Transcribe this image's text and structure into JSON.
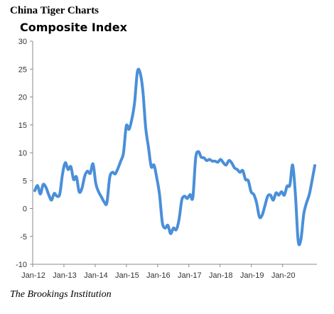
{
  "header": {
    "title": "China Tiger Charts"
  },
  "footer": {
    "source": "The Brookings Institution"
  },
  "chart_data": {
    "type": "line",
    "title": "Composite Index",
    "xlabel": "",
    "ylabel": "",
    "ylim": [
      -10,
      30
    ],
    "y_ticks": [
      30,
      25,
      20,
      15,
      10,
      5,
      0,
      -5,
      -10
    ],
    "x_ticks": [
      "Jan-12",
      "Jan-13",
      "Jan-14",
      "Jan-15",
      "Jan-16",
      "Jan-17",
      "Jan-18",
      "Jan-19",
      "Jan-20"
    ],
    "grid": false,
    "series_color": "#4a8fd9",
    "series": [
      {
        "values": [
          3.2,
          4.1,
          2.6,
          4.3,
          3.8,
          2.5,
          1.5,
          2.7,
          2.2,
          2.6,
          6.2,
          8.2,
          7.0,
          7.5,
          5.2,
          5.7,
          3.0,
          3.6,
          5.8,
          6.7,
          6.3,
          8.0,
          4.5,
          3.0,
          2.1,
          1.2,
          1.0,
          5.5,
          6.5,
          6.2,
          7.2,
          8.5,
          10.0,
          14.8,
          14.2,
          16.0,
          19.0,
          24.5,
          24.3,
          21.0,
          14.5,
          11.0,
          7.5,
          7.8,
          5.5,
          2.5,
          -2.5,
          -3.5,
          -3.0,
          -4.5,
          -3.5,
          -3.8,
          -2.0,
          1.5,
          2.2,
          1.8,
          2.5,
          2.0,
          9.0,
          10.2,
          9.2,
          9.1,
          8.6,
          8.8,
          8.5,
          8.5,
          8.3,
          8.8,
          8.2,
          7.8,
          8.6,
          8.2,
          7.3,
          7.0,
          6.5,
          6.8,
          5.2,
          5.0,
          3.0,
          2.5,
          1.0,
          -1.5,
          -1.2,
          0.5,
          2.2,
          2.4,
          1.5,
          2.8,
          2.4,
          3.0,
          2.4,
          4.0,
          4.2,
          7.8,
          2.5,
          -5.8,
          -5.5,
          -1.0,
          1.0,
          2.5,
          5.0,
          7.7
        ]
      }
    ]
  }
}
